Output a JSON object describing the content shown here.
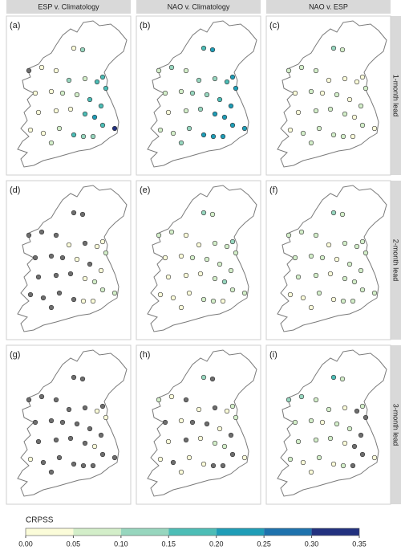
{
  "chart_data": {
    "type": "map-grid",
    "columns": [
      "ESP v. Climatology",
      "NAO v. Climatology",
      "NAO v. ESP"
    ],
    "rows": [
      "1-month lead",
      "2-month lead",
      "3-month lead"
    ],
    "missing_color": "#6e6e6e",
    "panels": [
      {
        "label": "(a)",
        "values": [
          null,
          0.03,
          0.01,
          0.02,
          0.12,
          0.12,
          0.08,
          0.16,
          0.18,
          0.15,
          0.04,
          0.03,
          0.06,
          0.07,
          0.15,
          0.17,
          0.03,
          0.02,
          0.04,
          0.16,
          0.2,
          0.18,
          0.31,
          0.02,
          0.04,
          0.06,
          0.16,
          0.12,
          0.14,
          0.05
        ]
      },
      {
        "label": "(b)",
        "values": [
          0.08,
          0.1,
          0.06,
          0.16,
          0.2,
          0.14,
          0.12,
          0.18,
          0.23,
          0.21,
          0.06,
          0.08,
          0.1,
          0.13,
          0.18,
          0.22,
          0.04,
          0.07,
          0.11,
          0.21,
          0.24,
          0.22,
          0.21,
          0.07,
          0.09,
          0.12,
          0.22,
          0.21,
          0.24,
          0.1
        ]
      },
      {
        "label": "(c)",
        "values": [
          0.06,
          0.07,
          0.05,
          0.14,
          0.09,
          0.03,
          0.04,
          0.02,
          0.04,
          0.05,
          0.03,
          0.05,
          0.04,
          0.06,
          0.03,
          0.05,
          0.02,
          0.06,
          0.07,
          0.06,
          0.04,
          0.05,
          0.02,
          0.04,
          0.05,
          0.06,
          0.07,
          0.05,
          0.04,
          0.06
        ]
      },
      {
        "label": "(d)",
        "values": [
          null,
          null,
          null,
          null,
          null,
          0.03,
          null,
          0.04,
          0.03,
          0.06,
          null,
          null,
          null,
          0.02,
          null,
          0.03,
          null,
          null,
          null,
          0.04,
          0.07,
          0.06,
          0.05,
          null,
          null,
          null,
          null,
          0.03,
          0.02,
          null
        ]
      },
      {
        "label": "(e)",
        "values": [
          0.07,
          0.06,
          0.03,
          0.12,
          0.06,
          0.04,
          0.06,
          0.05,
          0.1,
          0.08,
          0.04,
          0.03,
          0.06,
          0.05,
          0.07,
          0.08,
          0.03,
          0.04,
          0.02,
          0.09,
          0.11,
          0.08,
          0.07,
          0.02,
          0.03,
          0.04,
          0.06,
          0.05,
          0.04,
          0.03
        ]
      },
      {
        "label": "(f)",
        "values": [
          0.09,
          0.07,
          0.05,
          0.13,
          0.08,
          0.04,
          0.05,
          0.06,
          0.09,
          0.07,
          0.06,
          0.05,
          0.07,
          0.04,
          0.08,
          0.07,
          0.05,
          0.06,
          0.04,
          0.07,
          0.09,
          0.06,
          0.05,
          0.04,
          0.03,
          0.05,
          0.04,
          0.06,
          0.05,
          0.03
        ]
      },
      {
        "label": "(g)",
        "values": [
          null,
          null,
          null,
          null,
          null,
          null,
          null,
          0.03,
          null,
          0.02,
          null,
          null,
          null,
          null,
          null,
          null,
          null,
          null,
          null,
          null,
          0.03,
          null,
          null,
          0.02,
          null,
          null,
          null,
          null,
          null,
          null
        ]
      },
      {
        "label": "(h)",
        "values": [
          0.05,
          0.04,
          null,
          0.12,
          null,
          0.03,
          null,
          0.04,
          0.08,
          0.06,
          null,
          0.03,
          null,
          null,
          0.04,
          null,
          0.02,
          null,
          0.03,
          0.06,
          0.05,
          null,
          0.04,
          0.03,
          null,
          0.02,
          0.04,
          null,
          null,
          0.03
        ]
      },
      {
        "label": "(i)",
        "values": [
          0.14,
          0.11,
          0.08,
          0.18,
          0.06,
          0.05,
          0.03,
          null,
          0.06,
          null,
          0.07,
          0.08,
          0.04,
          0.06,
          0.05,
          null,
          0.06,
          0.05,
          0.07,
          0.04,
          null,
          null,
          0.02,
          0.05,
          0.04,
          0.06,
          0.03,
          0.05,
          null,
          0.04
        ]
      }
    ],
    "legend": {
      "title": "CRPSS",
      "colors": [
        "#fbfcd9",
        "#d3eec9",
        "#97d6be",
        "#4dbdb6",
        "#1f9db7",
        "#1e72ad",
        "#22317f"
      ],
      "lim": [
        0,
        0.35
      ],
      "ticks": [
        {
          "value": 0,
          "label": "0.00"
        },
        {
          "value": 0.05,
          "label": "0.05"
        },
        {
          "value": 0.1,
          "label": "0.10"
        },
        {
          "value": 0.15,
          "label": "0.15"
        },
        {
          "value": 0.2,
          "label": "0.20"
        },
        {
          "value": 0.25,
          "label": "0.25"
        },
        {
          "value": 0.3,
          "label": "0.30"
        },
        {
          "value": 0.35,
          "label": "0.35"
        }
      ]
    }
  }
}
